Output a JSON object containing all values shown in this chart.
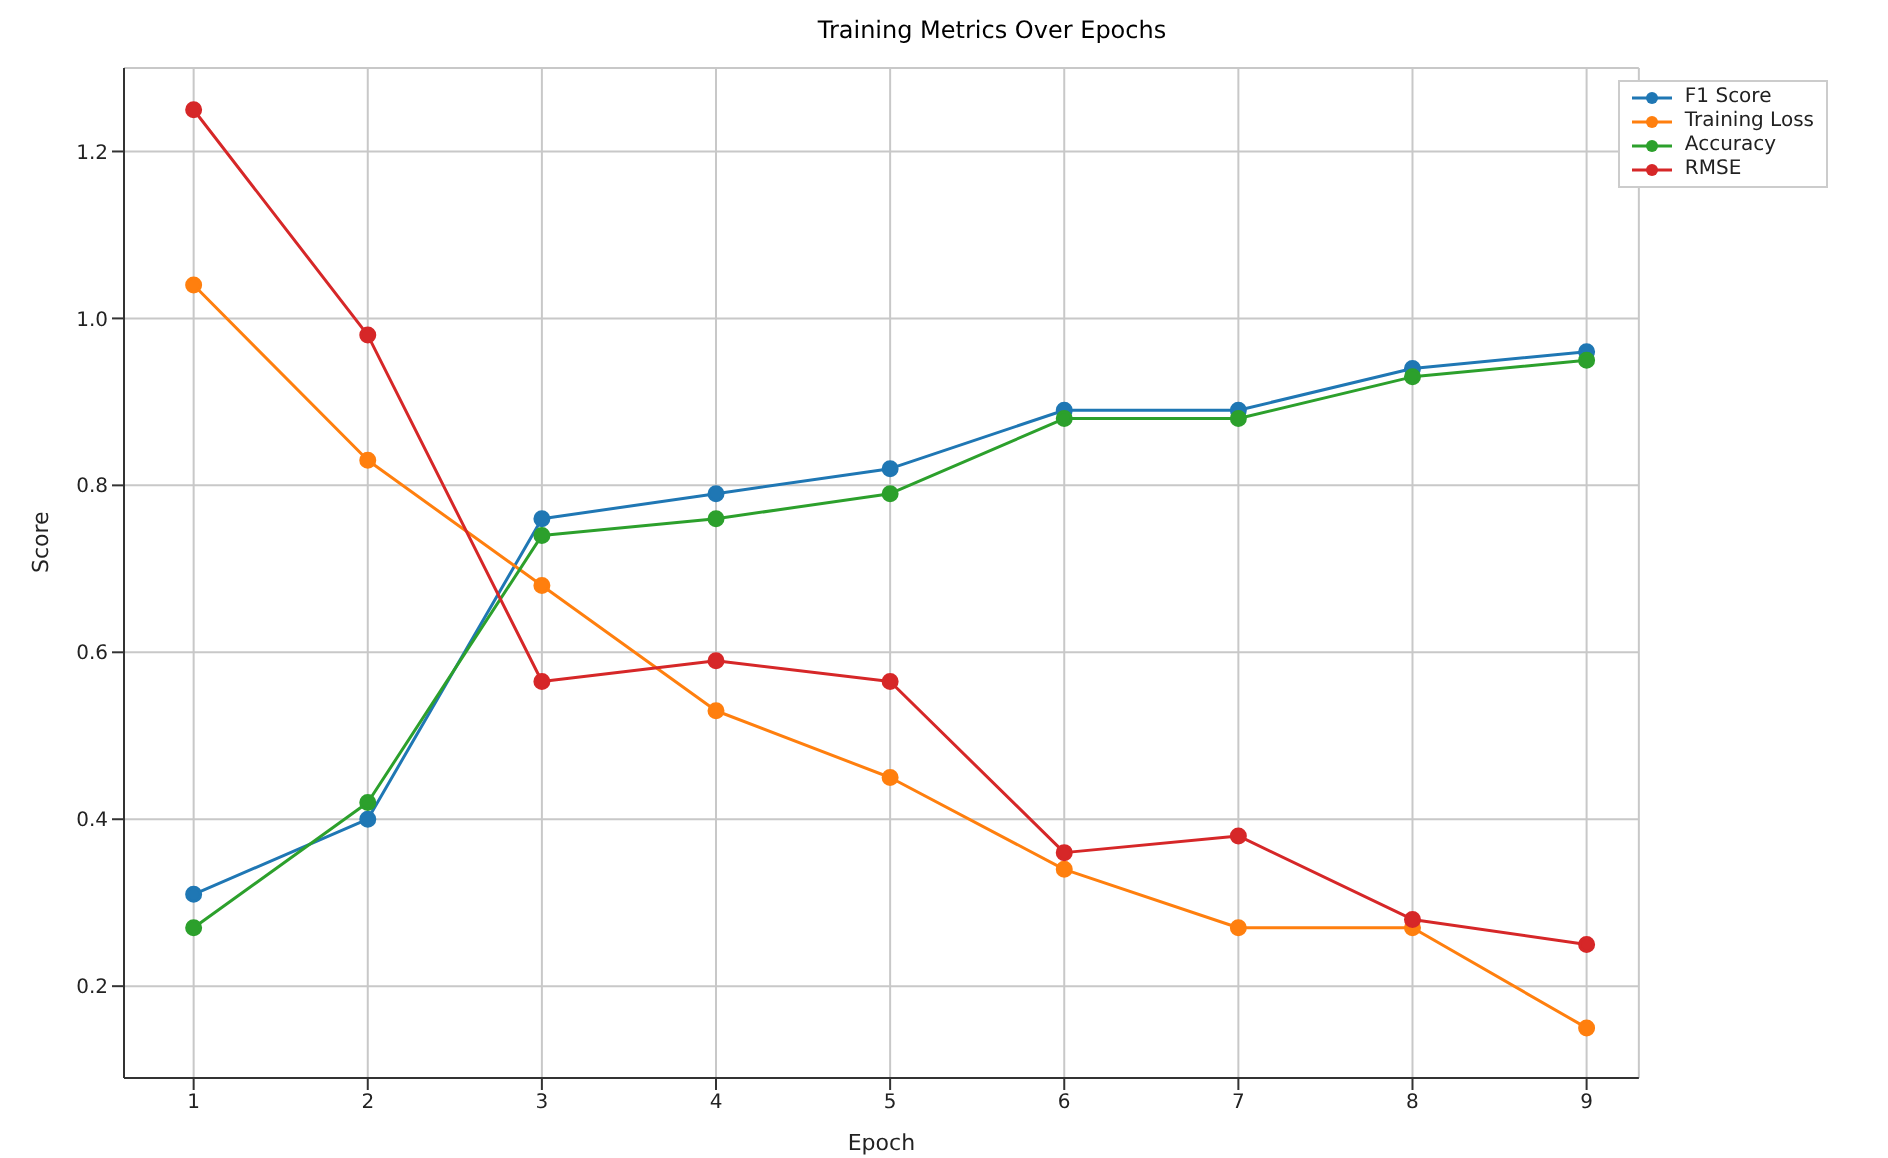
{
  "chart_data": {
    "type": "line",
    "title": "Training Metrics Over Epochs",
    "xlabel": "Epoch",
    "ylabel": "Score",
    "x": [
      1,
      2,
      3,
      4,
      5,
      6,
      7,
      8,
      9
    ],
    "series": [
      {
        "name": "F1 Score",
        "color": "#1f77b4",
        "values": [
          0.31,
          0.4,
          0.76,
          0.79,
          0.82,
          0.89,
          0.89,
          0.94,
          0.96
        ]
      },
      {
        "name": "Training Loss",
        "color": "#ff7f0e",
        "values": [
          1.04,
          0.83,
          0.68,
          0.53,
          0.45,
          0.34,
          0.27,
          0.27,
          0.15
        ]
      },
      {
        "name": "Accuracy",
        "color": "#2ca02c",
        "values": [
          0.27,
          0.42,
          0.74,
          0.76,
          0.79,
          0.88,
          0.88,
          0.93,
          0.95
        ]
      },
      {
        "name": "RMSE",
        "color": "#d62728",
        "values": [
          1.25,
          0.98,
          0.565,
          0.59,
          0.565,
          0.36,
          0.38,
          0.28,
          0.25
        ]
      }
    ],
    "xlim": [
      0.6,
      9.3
    ],
    "xticks": [
      1,
      2,
      3,
      4,
      5,
      6,
      7,
      8,
      9
    ],
    "ylim": [
      0.09,
      1.3
    ],
    "yticks": [
      0.2,
      0.4,
      0.6,
      0.8,
      {
        "value": 1,
        "label": "1.0"
      },
      1.2
    ],
    "grid": true,
    "legend": "top right",
    "marker": "circle",
    "line_style": "solid"
  }
}
